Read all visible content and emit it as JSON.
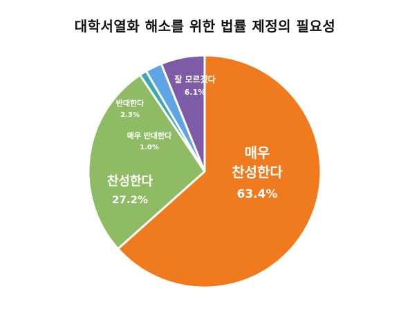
{
  "chart_data": {
    "type": "pie",
    "title": "대학서열화 해소를 위한 법률 제정의 필요성",
    "slices": [
      {
        "label": "매우 찬성한다",
        "value": 63.4,
        "value_label": "63.4%",
        "color": "#F07B1F"
      },
      {
        "label": "찬성한다",
        "value": 27.2,
        "value_label": "27.2%",
        "color": "#8EBB63"
      },
      {
        "label": "매우 반대한다",
        "value": 1.0,
        "value_label": "1.0%",
        "color": "#3FA6B3"
      },
      {
        "label": "반대한다",
        "value": 2.3,
        "value_label": "2.3%",
        "color": "#5DA6E3"
      },
      {
        "label": "잘 모르겠다",
        "value": 6.1,
        "value_label": "6.1%",
        "color": "#7D5BA6"
      }
    ],
    "legend": "none",
    "start": "12 o'clock",
    "direction": "clockwise"
  }
}
